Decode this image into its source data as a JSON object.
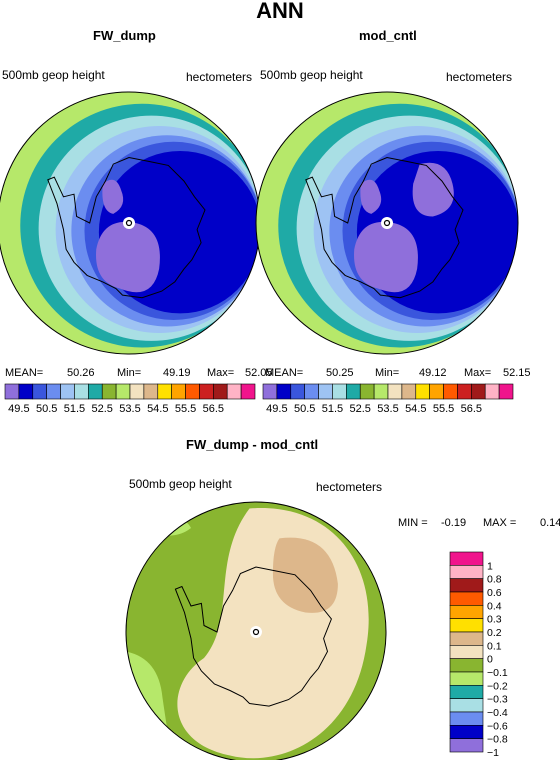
{
  "page": {
    "title": "ANN"
  },
  "panels": [
    {
      "title": "FW_dump",
      "left_label": "500mb geop height",
      "right_label": "hectometers",
      "stats": {
        "mean_label": "MEAN=",
        "mean": "50.26",
        "min_label": "Min=",
        "min": "49.19",
        "max_label": "Max=",
        "max": "52.05"
      }
    },
    {
      "title": "mod_cntl",
      "left_label": "500mb geop height",
      "right_label": "hectometers",
      "stats": {
        "mean_label": "MEAN=",
        "mean": "50.25",
        "min_label": "Min=",
        "min": "49.12",
        "max_label": "Max=",
        "max": "52.15"
      }
    }
  ],
  "diff": {
    "title": "FW_dump - mod_cntl",
    "left_label": "500mb geop height",
    "right_label": "hectometers",
    "stats": {
      "min_label": "MIN =",
      "min": "-0.19",
      "max_label": "MAX =",
      "max": "0.14"
    }
  },
  "chart_data": [
    {
      "type": "heatmap",
      "title": "FW_dump",
      "projection": "polar stereographic (north pole)",
      "units": "hectometers",
      "colorbar": {
        "orientation": "horizontal",
        "colors": [
          "#8f6fdb",
          "#0000c8",
          "#3a56dd",
          "#6b8df0",
          "#9ec3f3",
          "#a9dfe4",
          "#1faaa6",
          "#89b530",
          "#b6e86a",
          "#f3e2c0",
          "#ddb78b",
          "#ffe000",
          "#ffa400",
          "#ff5a00",
          "#cc2020",
          "#a01a1a",
          "#ffb3c6",
          "#f0148c"
        ],
        "tick_labels": [
          "49.5",
          "50.5",
          "51.5",
          "52.5",
          "53.5",
          "54.5",
          "55.5",
          "56.5"
        ]
      },
      "field": {
        "ring_colors_outer_to_inner": [
          "#b6e86a",
          "#1faaa6",
          "#a9dfe4",
          "#9ec3f3",
          "#6b8df0",
          "#3a56dd",
          "#0000c8"
        ],
        "ring_levels": [
          52.0,
          51.5,
          51.0,
          50.75,
          50.5,
          50.0,
          49.5
        ],
        "lows_below": 49.5,
        "low_color": "#8f6fdb"
      },
      "stats": {
        "mean": 50.26,
        "min": 49.19,
        "max": 52.05
      }
    },
    {
      "type": "heatmap",
      "title": "mod_cntl",
      "projection": "polar stereographic (north pole)",
      "units": "hectometers",
      "colorbar": {
        "orientation": "horizontal",
        "colors": [
          "#8f6fdb",
          "#0000c8",
          "#3a56dd",
          "#6b8df0",
          "#9ec3f3",
          "#a9dfe4",
          "#1faaa6",
          "#89b530",
          "#b6e86a",
          "#f3e2c0",
          "#ddb78b",
          "#ffe000",
          "#ffa400",
          "#ff5a00",
          "#cc2020",
          "#a01a1a",
          "#ffb3c6",
          "#f0148c"
        ],
        "tick_labels": [
          "49.5",
          "50.5",
          "51.5",
          "52.5",
          "53.5",
          "54.5",
          "55.5",
          "56.5"
        ]
      },
      "field": {
        "ring_colors_outer_to_inner": [
          "#b6e86a",
          "#1faaa6",
          "#a9dfe4",
          "#9ec3f3",
          "#6b8df0",
          "#3a56dd",
          "#0000c8"
        ],
        "ring_levels": [
          52.0,
          51.5,
          51.0,
          50.75,
          50.5,
          50.0,
          49.5
        ],
        "lows_below": 49.5,
        "low_color": "#8f6fdb"
      },
      "stats": {
        "mean": 50.25,
        "min": 49.12,
        "max": 52.15
      }
    },
    {
      "type": "heatmap",
      "title": "FW_dump - mod_cntl",
      "projection": "polar stereographic (north pole)",
      "units": "hectometers",
      "colorbar": {
        "orientation": "vertical",
        "levels_top_to_bottom": [
          "#f0148c",
          "#ffb3c6",
          "#a01a1a",
          "#ff5a00",
          "#ffa400",
          "#ffe000",
          "#ddb78b",
          "#f3e2c0",
          "#89b530",
          "#b6e86a",
          "#1faaa6",
          "#a9dfe4",
          "#6b8df0",
          "#0000c8",
          "#8f6fdb"
        ],
        "tick_labels": [
          "1",
          "0.8",
          "0.6",
          "0.4",
          "0.3",
          "0.2",
          "0.1",
          "0",
          "−0.1",
          "−0.2",
          "−0.3",
          "−0.4",
          "−0.6",
          "−0.8",
          "−1"
        ]
      },
      "field": {
        "background_value_range": [
          -0.1,
          0
        ],
        "central_value_range": [
          0,
          0.1
        ],
        "high_region_range": [
          0.1,
          0.2
        ],
        "low_region_range": [
          -0.2,
          -0.1
        ]
      },
      "stats": {
        "min": -0.19,
        "max": 0.14
      }
    }
  ]
}
